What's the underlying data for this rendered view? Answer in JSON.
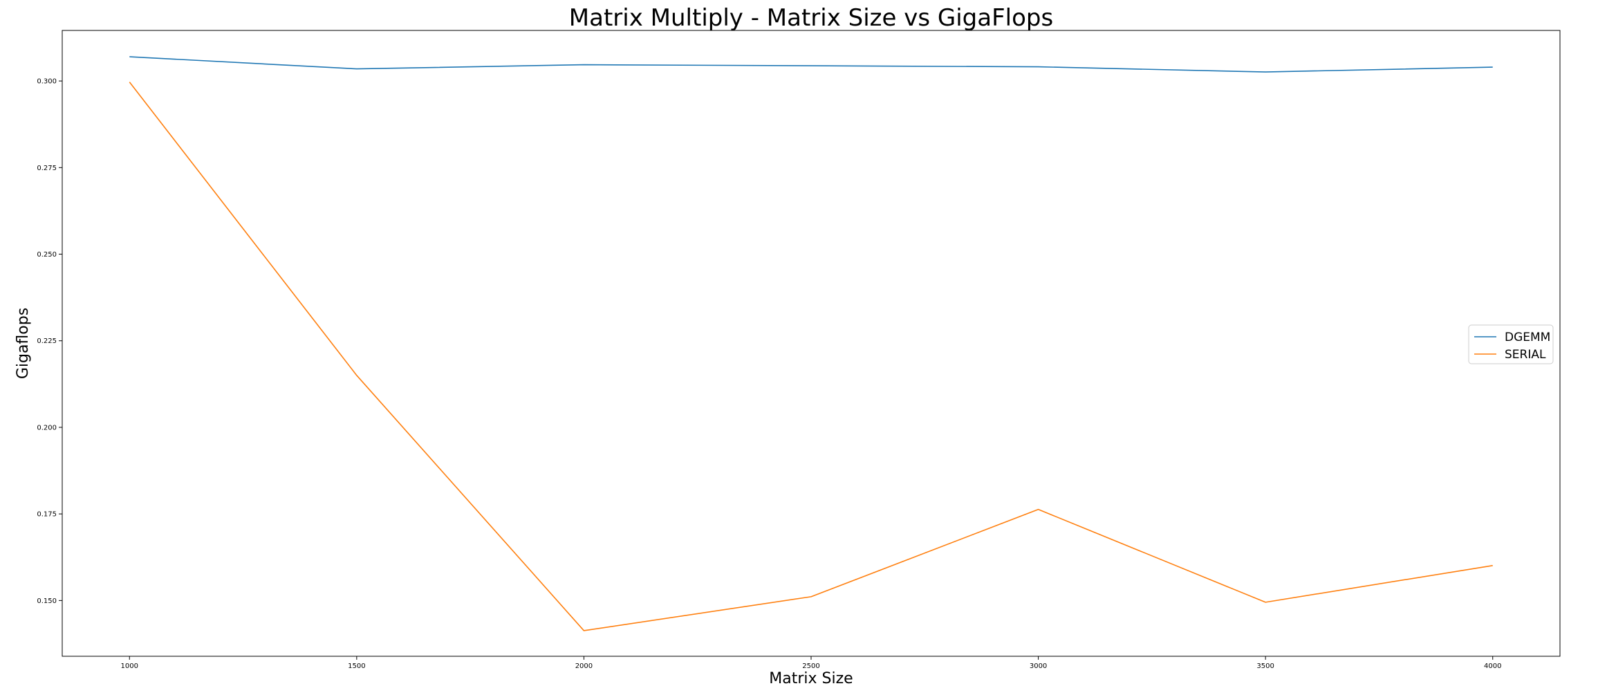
{
  "chart_data": {
    "type": "line",
    "title": "Matrix Multiply - Matrix Size vs GigaFlops",
    "xlabel": "Matrix Size",
    "ylabel": "Gigaflops",
    "x": [
      1000,
      1500,
      2000,
      2500,
      3000,
      3500,
      4000
    ],
    "xticks": [
      1000,
      1500,
      2000,
      2500,
      3000,
      3500,
      4000
    ],
    "xtick_labels": [
      "1000",
      "1500",
      "2000",
      "2500",
      "3000",
      "3500",
      "4000"
    ],
    "yticks": [
      0.15,
      0.175,
      0.2,
      0.225,
      0.25,
      0.275,
      0.3
    ],
    "ytick_labels": [
      "0.150",
      "0.175",
      "0.200",
      "0.225",
      "0.250",
      "0.275",
      "0.300"
    ],
    "xlim": [
      852,
      4148
    ],
    "ylim": [
      0.1339,
      0.3146
    ],
    "grid": false,
    "legend_position": "center-right",
    "series": [
      {
        "name": "DGEMM",
        "color": "#1f77b4",
        "values": [
          0.307,
          0.3035,
          0.3047,
          0.3044,
          0.3041,
          0.3026,
          0.304
        ]
      },
      {
        "name": "SERIAL",
        "color": "#ff7f0e",
        "values": [
          0.2997,
          0.215,
          0.1413,
          0.1511,
          0.1763,
          0.1495,
          0.1601
        ]
      }
    ]
  }
}
